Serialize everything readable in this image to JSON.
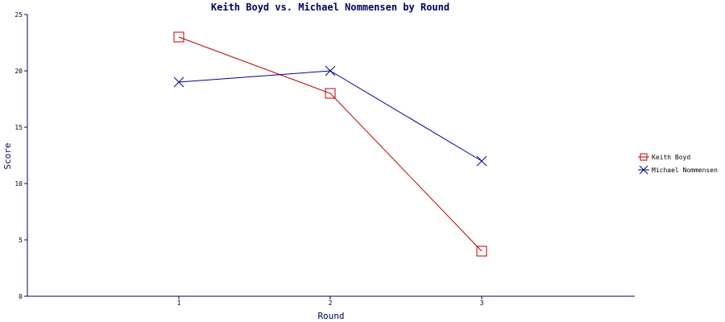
{
  "chart_data": {
    "type": "line",
    "title": "Keith Boyd vs. Michael Nommensen by Round",
    "xlabel": "Round",
    "ylabel": "Score",
    "categories": [
      "1",
      "2",
      "3"
    ],
    "ylim": [
      0,
      25
    ],
    "yticks": [
      0,
      5,
      10,
      15,
      20,
      25
    ],
    "grid": false,
    "legend_position": "right",
    "series": [
      {
        "name": "Keith Boyd",
        "marker": "square",
        "color": "#c00000",
        "values": [
          23,
          18,
          4
        ]
      },
      {
        "name": "Michael Nommensen",
        "marker": "x",
        "color": "#000099",
        "values": [
          19,
          20,
          12
        ]
      }
    ]
  }
}
